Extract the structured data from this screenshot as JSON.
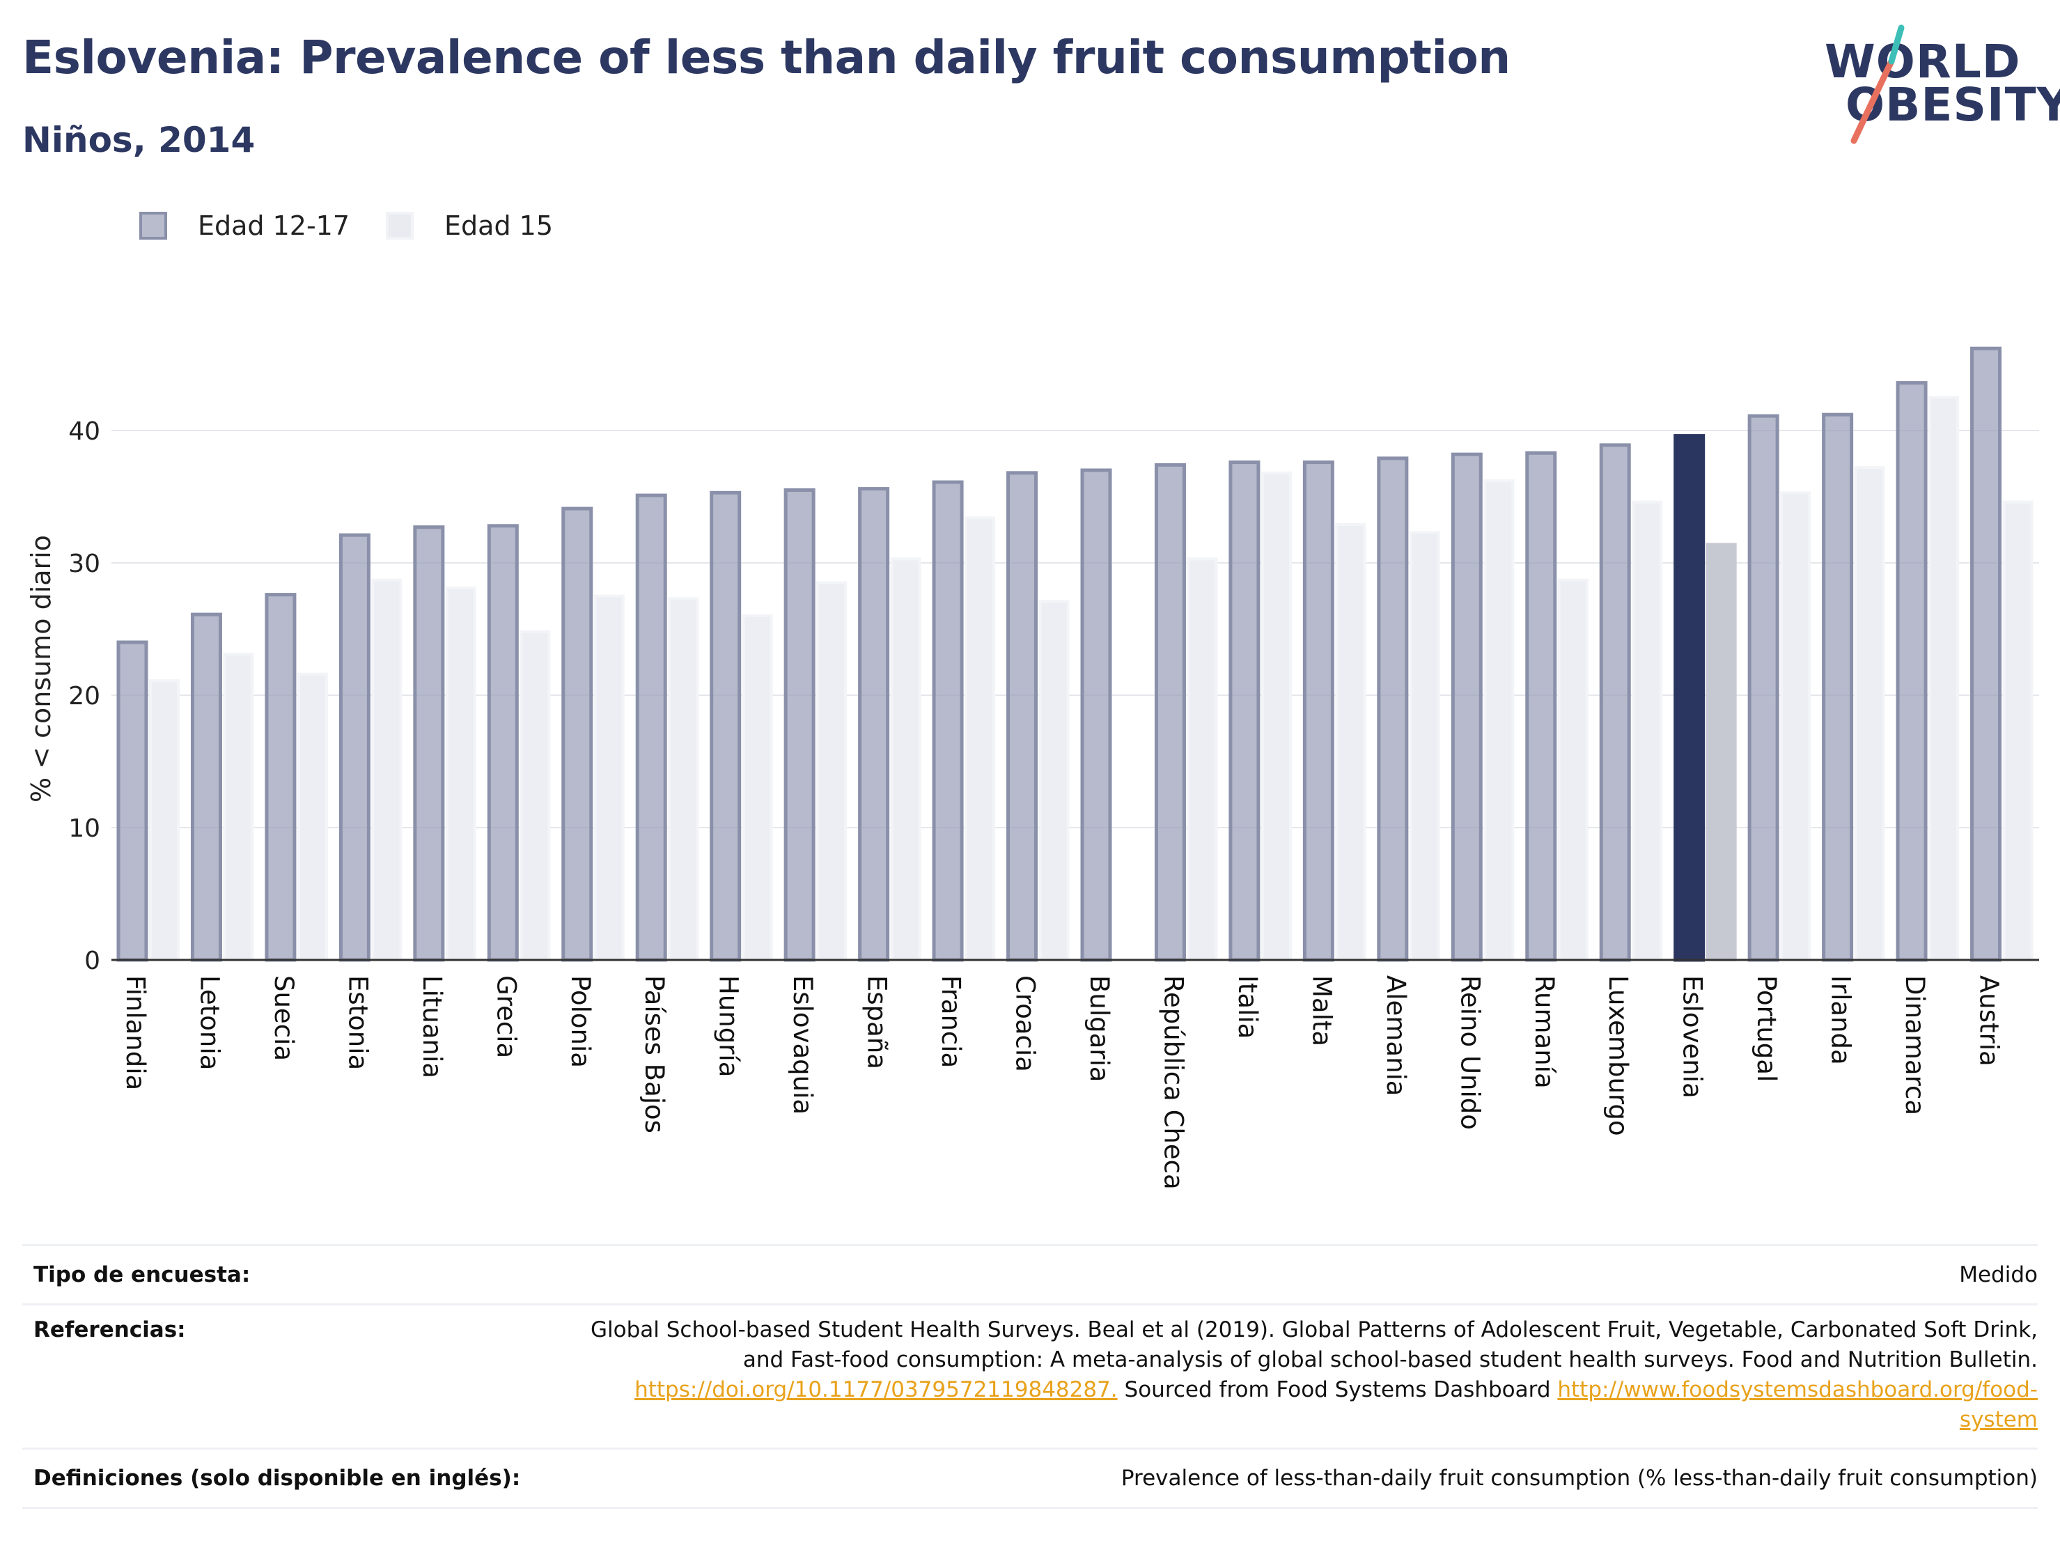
{
  "header": {
    "title": "Eslovenia: Prevalence of less than daily fruit consumption",
    "subtitle": "Niños, 2014"
  },
  "logo": {
    "line1": "WORLD",
    "line2": "OBESITY"
  },
  "colors": {
    "series1": "#9aa0b8",
    "series2": "#e4e6ed",
    "highlight1": "#2a3560",
    "highlight2": "#c6c8d2",
    "title": "#2d3862",
    "accent_red": "#e8705f",
    "accent_teal": "#3dbfb8"
  },
  "chart_data": {
    "type": "bar",
    "categories": [
      "Finlandia",
      "Letonia",
      "Suecia",
      "Estonia",
      "Lituania",
      "Grecia",
      "Polonia",
      "Países Bajos",
      "Hungría",
      "Eslovaquia",
      "España",
      "Francia",
      "Croacia",
      "Bulgaria",
      "República Checa",
      "Italia",
      "Malta",
      "Alemania",
      "Reino Unido",
      "Rumanía",
      "Luxemburgo",
      "Eslovenia",
      "Portugal",
      "Irlanda",
      "Dinamarca",
      "Austria"
    ],
    "series": [
      {
        "name": "Edad 12-17",
        "values": [
          24.0,
          26.1,
          27.6,
          32.1,
          32.7,
          32.8,
          34.1,
          35.1,
          35.3,
          35.5,
          35.6,
          36.1,
          36.8,
          37.0,
          37.4,
          37.6,
          37.6,
          37.9,
          38.2,
          38.3,
          38.9,
          39.6,
          41.1,
          41.2,
          43.6,
          46.2
        ]
      },
      {
        "name": "Edad 15",
        "values": [
          21.1,
          23.1,
          21.6,
          28.7,
          28.1,
          24.8,
          27.5,
          27.3,
          26.0,
          28.5,
          30.3,
          33.4,
          27.1,
          null,
          30.3,
          36.8,
          32.9,
          32.3,
          36.2,
          28.7,
          34.6,
          31.4,
          35.3,
          37.2,
          42.5,
          34.6
        ]
      }
    ],
    "highlight": "Eslovenia",
    "ylabel": "% < consumo diario",
    "xlabel": "",
    "ylim": [
      0,
      50
    ],
    "yticks": [
      0,
      10,
      20,
      30,
      40
    ],
    "grid": true,
    "legend": "top-left"
  },
  "info": {
    "survey_label": "Tipo de encuesta:",
    "survey_value": "Medido",
    "refs_label": "Referencias:",
    "refs_line1": "Global School-based Student Health Surveys. Beal et al (2019). Global Patterns of Adolescent Fruit, Vegetable, Carbonated Soft Drink,",
    "refs_line2": "and Fast-food consumption: A meta-analysis of global school-based student health surveys. Food and Nutrition Bulletin.",
    "refs_link1": "https://doi.org/10.1177/0379572119848287.",
    "refs_mid": " Sourced from Food Systems Dashboard ",
    "refs_link2a": "http://www.foodsystemsdashboard.org/food-",
    "refs_link2b": "system",
    "defs_label": "Definiciones (solo disponible en inglés):",
    "defs_value": "Prevalence of less-than-daily fruit consumption (% less-than-daily fruit consumption)"
  }
}
